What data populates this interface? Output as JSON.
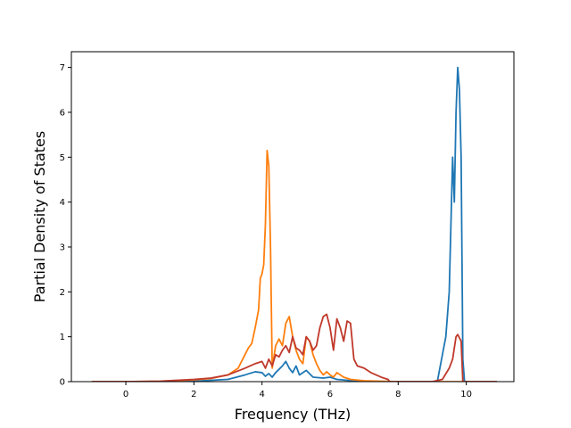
{
  "chart_data": {
    "type": "line",
    "title": "",
    "xlabel": "Frequency (THz)",
    "ylabel": "Partial Density of States",
    "xlim": [
      -1.6,
      11.4
    ],
    "ylim": [
      0,
      7.35
    ],
    "xticks": [
      0,
      2,
      4,
      6,
      8,
      10
    ],
    "yticks": [
      0,
      1,
      2,
      3,
      4,
      5,
      6,
      7
    ],
    "grid": false,
    "legend": "none",
    "series": [
      {
        "color": "#1f77b4",
        "points": [
          [
            -1.0,
            0
          ],
          [
            0,
            0
          ],
          [
            1.0,
            0
          ],
          [
            2.0,
            0.01
          ],
          [
            3.0,
            0.05
          ],
          [
            3.5,
            0.15
          ],
          [
            3.8,
            0.22
          ],
          [
            4.0,
            0.2
          ],
          [
            4.1,
            0.12
          ],
          [
            4.2,
            0.18
          ],
          [
            4.3,
            0.1
          ],
          [
            4.4,
            0.2
          ],
          [
            4.6,
            0.35
          ],
          [
            4.7,
            0.45
          ],
          [
            4.8,
            0.3
          ],
          [
            4.9,
            0.2
          ],
          [
            5.0,
            0.35
          ],
          [
            5.1,
            0.15
          ],
          [
            5.3,
            0.25
          ],
          [
            5.5,
            0.1
          ],
          [
            5.8,
            0.08
          ],
          [
            6.0,
            0.1
          ],
          [
            6.2,
            0.05
          ],
          [
            6.5,
            0.03
          ],
          [
            7.0,
            0.01
          ],
          [
            8.0,
            0
          ],
          [
            9.0,
            0
          ],
          [
            9.15,
            0
          ],
          [
            9.25,
            0.4
          ],
          [
            9.4,
            1.0
          ],
          [
            9.5,
            2.0
          ],
          [
            9.6,
            5.0
          ],
          [
            9.65,
            4.0
          ],
          [
            9.7,
            6.0
          ],
          [
            9.75,
            7.0
          ],
          [
            9.8,
            6.5
          ],
          [
            9.85,
            5.0
          ],
          [
            9.9,
            0.5
          ],
          [
            9.95,
            0
          ],
          [
            10.5,
            0
          ],
          [
            10.9,
            0
          ]
        ]
      },
      {
        "color": "#ff7f0e",
        "points": [
          [
            -1.0,
            0
          ],
          [
            0,
            0
          ],
          [
            1.0,
            0.01
          ],
          [
            2.0,
            0.04
          ],
          [
            2.5,
            0.07
          ],
          [
            3.0,
            0.15
          ],
          [
            3.3,
            0.3
          ],
          [
            3.5,
            0.6
          ],
          [
            3.6,
            0.75
          ],
          [
            3.7,
            0.85
          ],
          [
            3.8,
            1.2
          ],
          [
            3.9,
            1.6
          ],
          [
            3.95,
            2.3
          ],
          [
            4.0,
            2.4
          ],
          [
            4.05,
            2.6
          ],
          [
            4.1,
            3.5
          ],
          [
            4.15,
            5.15
          ],
          [
            4.2,
            4.8
          ],
          [
            4.25,
            3.0
          ],
          [
            4.3,
            0.3
          ],
          [
            4.4,
            0.8
          ],
          [
            4.5,
            0.95
          ],
          [
            4.6,
            0.8
          ],
          [
            4.7,
            1.3
          ],
          [
            4.8,
            1.45
          ],
          [
            4.9,
            1.0
          ],
          [
            5.0,
            0.7
          ],
          [
            5.1,
            0.5
          ],
          [
            5.2,
            0.4
          ],
          [
            5.3,
            1.0
          ],
          [
            5.4,
            0.9
          ],
          [
            5.5,
            0.6
          ],
          [
            5.6,
            0.4
          ],
          [
            5.7,
            0.25
          ],
          [
            5.8,
            0.15
          ],
          [
            5.9,
            0.22
          ],
          [
            6.0,
            0.15
          ],
          [
            6.1,
            0.1
          ],
          [
            6.2,
            0.2
          ],
          [
            6.4,
            0.1
          ],
          [
            6.6,
            0.05
          ],
          [
            7.0,
            0.02
          ],
          [
            7.5,
            0.01
          ],
          [
            8.0,
            0
          ],
          [
            9.0,
            0
          ],
          [
            10.0,
            0
          ],
          [
            10.9,
            0
          ]
        ]
      },
      {
        "color": "#c0392b",
        "points": [
          [
            -1.0,
            0
          ],
          [
            0,
            0
          ],
          [
            1.0,
            0.01
          ],
          [
            2.0,
            0.05
          ],
          [
            2.5,
            0.08
          ],
          [
            3.0,
            0.15
          ],
          [
            3.5,
            0.3
          ],
          [
            3.8,
            0.4
          ],
          [
            4.0,
            0.45
          ],
          [
            4.1,
            0.3
          ],
          [
            4.2,
            0.5
          ],
          [
            4.3,
            0.35
          ],
          [
            4.4,
            0.6
          ],
          [
            4.5,
            0.55
          ],
          [
            4.6,
            0.7
          ],
          [
            4.7,
            0.8
          ],
          [
            4.8,
            0.65
          ],
          [
            4.9,
            1.0
          ],
          [
            5.0,
            0.75
          ],
          [
            5.1,
            0.7
          ],
          [
            5.2,
            0.6
          ],
          [
            5.3,
            1.0
          ],
          [
            5.4,
            0.9
          ],
          [
            5.5,
            0.7
          ],
          [
            5.6,
            0.8
          ],
          [
            5.7,
            1.2
          ],
          [
            5.8,
            1.45
          ],
          [
            5.9,
            1.5
          ],
          [
            6.0,
            1.2
          ],
          [
            6.1,
            0.7
          ],
          [
            6.2,
            1.4
          ],
          [
            6.3,
            1.2
          ],
          [
            6.4,
            0.9
          ],
          [
            6.5,
            1.35
          ],
          [
            6.6,
            1.3
          ],
          [
            6.7,
            0.5
          ],
          [
            6.8,
            0.35
          ],
          [
            7.0,
            0.3
          ],
          [
            7.2,
            0.2
          ],
          [
            7.5,
            0.1
          ],
          [
            7.7,
            0.05
          ],
          [
            7.75,
            0
          ],
          [
            8.0,
            0
          ],
          [
            9.0,
            0
          ],
          [
            9.3,
            0.05
          ],
          [
            9.5,
            0.3
          ],
          [
            9.6,
            0.5
          ],
          [
            9.7,
            1.0
          ],
          [
            9.75,
            1.05
          ],
          [
            9.85,
            0.9
          ],
          [
            9.9,
            0
          ],
          [
            10.0,
            0
          ],
          [
            10.9,
            0
          ]
        ]
      }
    ]
  }
}
